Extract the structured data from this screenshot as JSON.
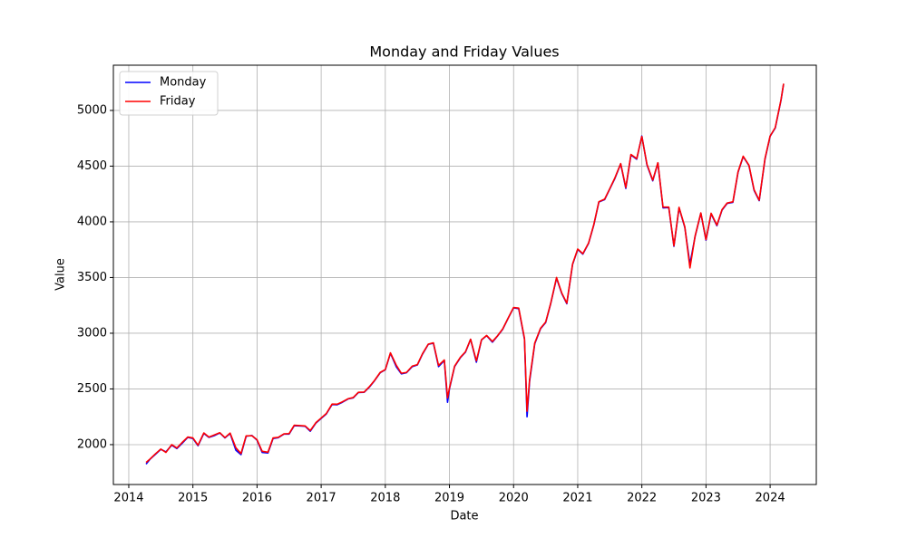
{
  "chart_data": {
    "type": "line",
    "title": "Monday and Friday Values",
    "xlabel": "Date",
    "ylabel": "Value",
    "x": [
      2014.27,
      2014.33,
      2014.42,
      2014.5,
      2014.58,
      2014.67,
      2014.75,
      2014.83,
      2014.92,
      2015.0,
      2015.08,
      2015.17,
      2015.25,
      2015.33,
      2015.42,
      2015.5,
      2015.58,
      2015.67,
      2015.75,
      2015.83,
      2015.92,
      2016.0,
      2016.08,
      2016.17,
      2016.25,
      2016.33,
      2016.42,
      2016.5,
      2016.58,
      2016.67,
      2016.75,
      2016.83,
      2016.92,
      2017.0,
      2017.08,
      2017.17,
      2017.25,
      2017.33,
      2017.42,
      2017.5,
      2017.58,
      2017.67,
      2017.75,
      2017.83,
      2017.92,
      2018.0,
      2018.08,
      2018.17,
      2018.25,
      2018.33,
      2018.42,
      2018.5,
      2018.58,
      2018.67,
      2018.75,
      2018.83,
      2018.92,
      2018.97,
      2019.0,
      2019.08,
      2019.17,
      2019.25,
      2019.33,
      2019.42,
      2019.5,
      2019.58,
      2019.67,
      2019.75,
      2019.83,
      2019.92,
      2020.0,
      2020.08,
      2020.17,
      2020.21,
      2020.25,
      2020.33,
      2020.42,
      2020.5,
      2020.58,
      2020.67,
      2020.75,
      2020.83,
      2020.92,
      2021.0,
      2021.08,
      2021.17,
      2021.25,
      2021.33,
      2021.42,
      2021.5,
      2021.58,
      2021.67,
      2021.75,
      2021.83,
      2021.92,
      2022.0,
      2022.08,
      2022.17,
      2022.25,
      2022.33,
      2022.42,
      2022.5,
      2022.58,
      2022.67,
      2022.75,
      2022.83,
      2022.92,
      2023.0,
      2023.08,
      2023.17,
      2023.25,
      2023.33,
      2023.42,
      2023.5,
      2023.58,
      2023.67,
      2023.75,
      2023.83,
      2023.92,
      2024.0,
      2024.08,
      2024.17,
      2024.21
    ],
    "series": [
      {
        "name": "Monday",
        "color": "#0000ff",
        "values": [
          1825,
          1868,
          1915,
          1958,
          1935,
          1995,
          1965,
          2010,
          2065,
          2055,
          1990,
          2100,
          2065,
          2080,
          2105,
          2060,
          2100,
          1950,
          1910,
          2075,
          2082,
          2040,
          1930,
          1925,
          2055,
          2062,
          2095,
          2095,
          2170,
          2168,
          2165,
          2120,
          2195,
          2235,
          2275,
          2360,
          2358,
          2380,
          2410,
          2420,
          2468,
          2470,
          2515,
          2572,
          2645,
          2672,
          2820,
          2700,
          2635,
          2645,
          2700,
          2715,
          2812,
          2900,
          2910,
          2700,
          2755,
          2380,
          2500,
          2700,
          2780,
          2830,
          2945,
          2740,
          2940,
          2978,
          2920,
          2975,
          3035,
          3140,
          3228,
          3220,
          2945,
          2250,
          2570,
          2905,
          3040,
          3095,
          3268,
          3495,
          3358,
          3265,
          3618,
          3752,
          3710,
          3808,
          3970,
          4178,
          4200,
          4295,
          4390,
          4520,
          4300,
          4600,
          4562,
          4770,
          4510,
          4368,
          4528,
          4125,
          4128,
          3780,
          4125,
          3950,
          3620,
          3868,
          4078,
          3835,
          4072,
          3965,
          4105,
          4165,
          4175,
          4445,
          4585,
          4505,
          4282,
          4190,
          4562,
          4768,
          4842,
          5092,
          5238
        ]
      },
      {
        "name": "Friday",
        "color": "#ff0000",
        "values": [
          1840,
          1870,
          1920,
          1960,
          1930,
          2000,
          1970,
          2018,
          2068,
          2060,
          1995,
          2105,
          2068,
          2086,
          2107,
          2063,
          2104,
          1972,
          1920,
          2079,
          2080,
          2044,
          1940,
          1932,
          2060,
          2065,
          2097,
          2099,
          2174,
          2171,
          2168,
          2126,
          2199,
          2239,
          2279,
          2364,
          2363,
          2384,
          2412,
          2423,
          2470,
          2472,
          2519,
          2575,
          2648,
          2674,
          2824,
          2714,
          2641,
          2648,
          2705,
          2718,
          2816,
          2902,
          2914,
          2711,
          2760,
          2420,
          2507,
          2704,
          2784,
          2834,
          2946,
          2752,
          2942,
          2980,
          2926,
          2977,
          3038,
          3141,
          3231,
          3226,
          2954,
          2300,
          2585,
          2912,
          3044,
          3100,
          3271,
          3500,
          3363,
          3270,
          3622,
          3756,
          3714,
          3811,
          3973,
          4181,
          4204,
          4298,
          4395,
          4523,
          4308,
          4605,
          4567,
          4766,
          4516,
          4374,
          4530,
          4132,
          4132,
          3785,
          4130,
          3955,
          3586,
          3872,
          4080,
          3840,
          4077,
          3970,
          4109,
          4169,
          4180,
          4450,
          4589,
          4508,
          4288,
          4194,
          4568,
          4770,
          4846,
          5096,
          5240
        ]
      }
    ],
    "xlim": [
      2013.76,
      2024.72
    ],
    "xticks": [
      2014,
      2015,
      2016,
      2017,
      2018,
      2019,
      2020,
      2021,
      2022,
      2023,
      2024
    ],
    "ylim": [
      1642,
      5406
    ],
    "yticks": [
      2000,
      2500,
      3000,
      3500,
      4000,
      4500,
      5000
    ],
    "grid": true,
    "legend": "upper left"
  }
}
